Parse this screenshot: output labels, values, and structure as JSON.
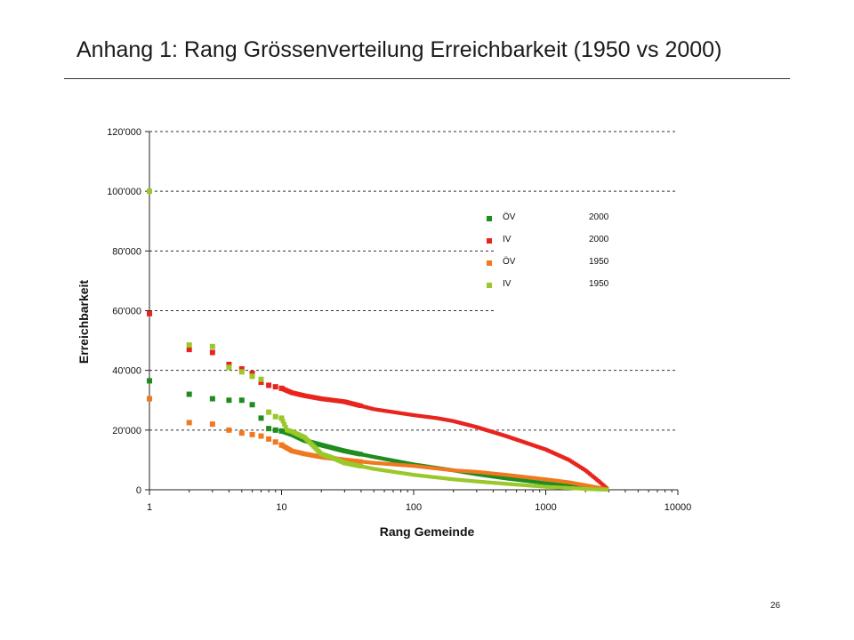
{
  "slide": {
    "title": "Anhang 1: Rang Grössenverteilung Erreichbarkeit (1950 vs 2000)",
    "page_number": "26"
  },
  "chart_data": {
    "type": "scatter",
    "title": "",
    "xlabel": "Rang Gemeinde",
    "ylabel": "Erreichbarkeit",
    "x_scale": "log",
    "xlim": [
      1,
      10000
    ],
    "ylim": [
      0,
      120000
    ],
    "x_ticks": [
      1,
      10,
      100,
      1000,
      10000
    ],
    "x_tick_labels": [
      "1",
      "10",
      "100",
      "1000",
      "10000"
    ],
    "y_ticks": [
      0,
      20000,
      40000,
      60000,
      80000,
      100000,
      120000
    ],
    "y_tick_labels": [
      "0",
      "20'000",
      "40'000",
      "60'000",
      "80'000",
      "100'000",
      "120'000"
    ],
    "grid": "horizontal dashed",
    "legend_position": "upper-right",
    "series": [
      {
        "name": "ÖV",
        "year": "2000",
        "color": "#1e8c1e",
        "points": [
          [
            1,
            36500
          ],
          [
            2,
            32000
          ],
          [
            3,
            30500
          ],
          [
            4,
            30000
          ],
          [
            5,
            30000
          ],
          [
            6,
            28500
          ],
          [
            7,
            24000
          ],
          [
            8,
            20500
          ],
          [
            9,
            20000
          ],
          [
            10,
            19700
          ],
          [
            12,
            18500
          ],
          [
            15,
            16500
          ],
          [
            20,
            15000
          ],
          [
            30,
            13000
          ],
          [
            50,
            11000
          ],
          [
            100,
            8500
          ],
          [
            200,
            6500
          ],
          [
            300,
            5200
          ],
          [
            500,
            3800
          ],
          [
            1000,
            2200
          ],
          [
            1500,
            1300
          ],
          [
            2000,
            700
          ],
          [
            2500,
            300
          ],
          [
            2900,
            100
          ]
        ]
      },
      {
        "name": "IV",
        "year": "2000",
        "color": "#e8241e",
        "points": [
          [
            1,
            59000
          ],
          [
            2,
            47000
          ],
          [
            3,
            46000
          ],
          [
            4,
            42000
          ],
          [
            5,
            40500
          ],
          [
            6,
            39000
          ],
          [
            7,
            36000
          ],
          [
            8,
            35000
          ],
          [
            9,
            34500
          ],
          [
            10,
            34000
          ],
          [
            12,
            32500
          ],
          [
            15,
            31500
          ],
          [
            20,
            30500
          ],
          [
            30,
            29500
          ],
          [
            50,
            27000
          ],
          [
            100,
            25000
          ],
          [
            150,
            24000
          ],
          [
            200,
            23000
          ],
          [
            300,
            21000
          ],
          [
            500,
            18000
          ],
          [
            1000,
            13500
          ],
          [
            1500,
            10000
          ],
          [
            2000,
            6500
          ],
          [
            2500,
            3000
          ],
          [
            2900,
            500
          ]
        ]
      },
      {
        "name": "ÖV",
        "year": "1950",
        "color": "#f0781e",
        "points": [
          [
            1,
            30500
          ],
          [
            2,
            22500
          ],
          [
            3,
            22000
          ],
          [
            4,
            20000
          ],
          [
            5,
            19000
          ],
          [
            6,
            18500
          ],
          [
            7,
            18000
          ],
          [
            8,
            17000
          ],
          [
            9,
            16000
          ],
          [
            10,
            15000
          ],
          [
            12,
            13000
          ],
          [
            15,
            12000
          ],
          [
            20,
            11000
          ],
          [
            30,
            10000
          ],
          [
            50,
            9000
          ],
          [
            100,
            8000
          ],
          [
            200,
            6500
          ],
          [
            300,
            6000
          ],
          [
            500,
            5000
          ],
          [
            1000,
            3500
          ],
          [
            1500,
            2500
          ],
          [
            2000,
            1500
          ],
          [
            2500,
            700
          ],
          [
            2900,
            200
          ]
        ]
      },
      {
        "name": "IV",
        "year": "1950",
        "color": "#9ac82a",
        "points": [
          [
            1,
            100000
          ],
          [
            2,
            48500
          ],
          [
            3,
            48000
          ],
          [
            4,
            41000
          ],
          [
            5,
            39500
          ],
          [
            6,
            38000
          ],
          [
            7,
            37000
          ],
          [
            8,
            26000
          ],
          [
            9,
            24500
          ],
          [
            10,
            24000
          ],
          [
            11,
            20000
          ],
          [
            12,
            19500
          ],
          [
            15,
            17500
          ],
          [
            20,
            12000
          ],
          [
            25,
            10500
          ],
          [
            30,
            9000
          ],
          [
            50,
            7000
          ],
          [
            100,
            5000
          ],
          [
            200,
            3500
          ],
          [
            300,
            2800
          ],
          [
            500,
            2000
          ],
          [
            1000,
            1000
          ],
          [
            1500,
            600
          ],
          [
            2000,
            300
          ],
          [
            2500,
            100
          ],
          [
            2900,
            50
          ]
        ]
      }
    ]
  }
}
